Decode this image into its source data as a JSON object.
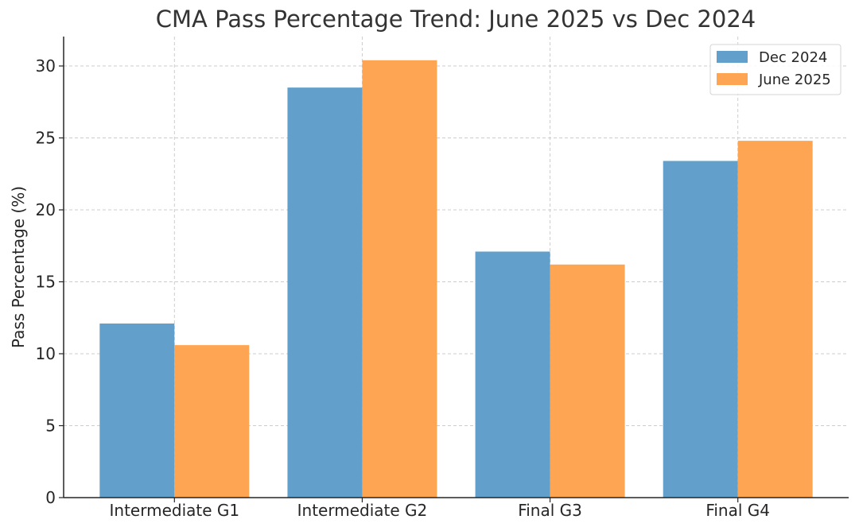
{
  "chart_data": {
    "type": "bar",
    "title": "CMA Pass Percentage Trend: June 2025 vs Dec 2024",
    "xlabel": "",
    "ylabel": "Pass Percentage (%)",
    "categories": [
      "Intermediate G1",
      "Intermediate G2",
      "Final G3",
      "Final G4"
    ],
    "series": [
      {
        "name": "Dec 2024",
        "color": "#62a0cb",
        "values": [
          12.1,
          28.5,
          17.1,
          23.4
        ]
      },
      {
        "name": "June 2025",
        "color": "#fea553",
        "values": [
          10.6,
          30.4,
          16.2,
          24.8
        ]
      }
    ],
    "ylim": [
      0,
      32
    ],
    "yticks": [
      0,
      5,
      10,
      15,
      20,
      25,
      30
    ],
    "grid": true,
    "legend_position": "top-right"
  }
}
